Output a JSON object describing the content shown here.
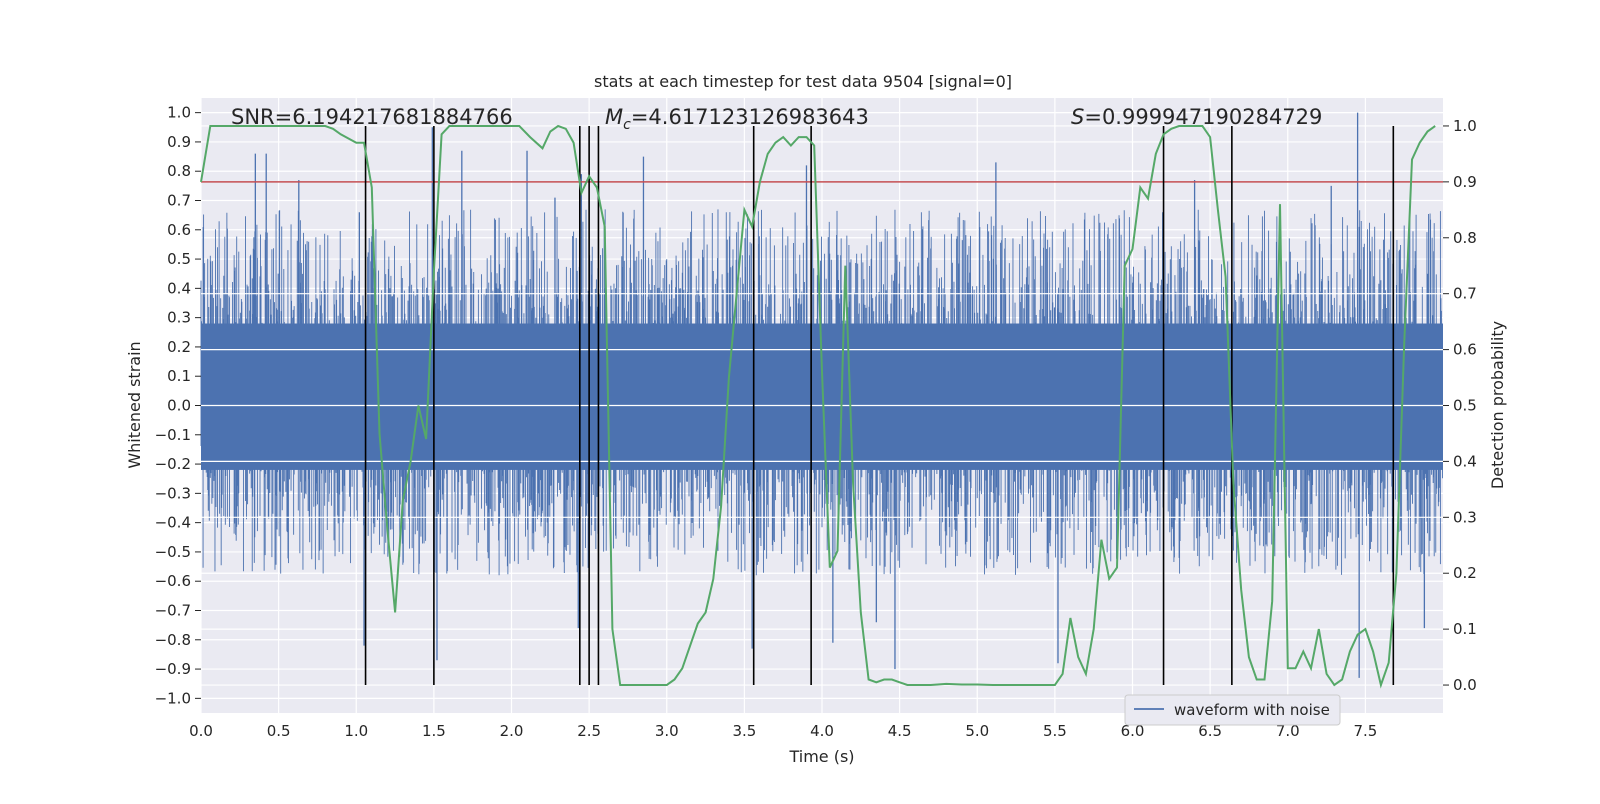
{
  "chart_data": {
    "type": "line",
    "title": "stats at each timestep for test data 9504 [signal=0]",
    "xlabel": "Time (s)",
    "ylabel": "Whitened strain",
    "y2label": "Detection probability",
    "xlim": [
      0.0,
      8.0
    ],
    "ylim": [
      -1.05,
      1.05
    ],
    "y2lim": [
      -0.05,
      1.05
    ],
    "xticks": [
      "0.0",
      "0.5",
      "1.0",
      "1.5",
      "2.0",
      "2.5",
      "3.0",
      "3.5",
      "4.0",
      "4.5",
      "5.0",
      "5.5",
      "6.0",
      "6.5",
      "7.0",
      "7.5"
    ],
    "yticks": [
      "-1.0",
      "-0.9",
      "-0.8",
      "-0.7",
      "-0.6",
      "-0.5",
      "-0.4",
      "-0.3",
      "-0.2",
      "-0.1",
      "0.0",
      "0.1",
      "0.2",
      "0.3",
      "0.4",
      "0.5",
      "0.6",
      "0.7",
      "0.8",
      "0.9",
      "1.0"
    ],
    "y2ticks": [
      "0.0",
      "0.1",
      "0.2",
      "0.3",
      "0.4",
      "0.5",
      "0.6",
      "0.7",
      "0.8",
      "0.9",
      "1.0"
    ],
    "grid": true,
    "legend": {
      "placement": "lower-right",
      "entries": [
        "waveform with noise"
      ]
    },
    "annotations": {
      "snr": "SNR=6.194217681884766",
      "mc_symbol": "M",
      "mc_sub": "c",
      "mc_value": "=4.617123126983643",
      "s_symbol": "S",
      "s_value": "=0.999947190284729"
    },
    "threshold": {
      "value": 0.9,
      "axis": "right",
      "color": "#c44e52"
    },
    "vlines": [
      1.06,
      1.5,
      2.44,
      2.5,
      2.56,
      3.56,
      3.93,
      6.2,
      6.64,
      7.68
    ],
    "vline_range": [
      0.0,
      1.0
    ],
    "colors": {
      "waveform": "#4c72b0",
      "probability": "#55a868",
      "vline": "#000000",
      "bg": "#eaeaf2"
    },
    "series": [
      {
        "name": "waveform with noise",
        "axis": "left",
        "note": "dense noise, roughly within -0.5..0.6 with peaks to about +/-0.9",
        "peaks": [
          [
            0.35,
            0.86
          ],
          [
            0.42,
            0.86
          ],
          [
            0.63,
            0.77
          ],
          [
            1.02,
            0.66
          ],
          [
            1.05,
            -0.82
          ],
          [
            1.49,
            0.95
          ],
          [
            1.52,
            -0.87
          ],
          [
            1.68,
            0.87
          ],
          [
            2.1,
            0.87
          ],
          [
            2.28,
            0.71
          ],
          [
            2.43,
            -0.76
          ],
          [
            2.45,
            0.79
          ],
          [
            2.85,
            0.85
          ],
          [
            3.55,
            -0.83
          ],
          [
            3.9,
            0.82
          ],
          [
            4.07,
            -0.81
          ],
          [
            4.35,
            -0.74
          ],
          [
            4.47,
            -0.9
          ],
          [
            5.12,
            0.83
          ],
          [
            5.52,
            -0.88
          ],
          [
            6.4,
            0.77
          ],
          [
            7.28,
            0.75
          ],
          [
            7.45,
            1.0
          ],
          [
            7.46,
            -0.93
          ],
          [
            7.88,
            -0.76
          ]
        ]
      },
      {
        "name": "",
        "axis": "right",
        "x": [
          0.0,
          0.06,
          0.1,
          0.2,
          0.3,
          0.4,
          0.5,
          0.6,
          0.7,
          0.8,
          0.85,
          0.9,
          1.0,
          1.05,
          1.1,
          1.15,
          1.2,
          1.25,
          1.3,
          1.35,
          1.4,
          1.45,
          1.5,
          1.55,
          1.6,
          1.7,
          1.8,
          1.9,
          2.0,
          2.05,
          2.12,
          2.2,
          2.25,
          2.3,
          2.35,
          2.4,
          2.45,
          2.5,
          2.55,
          2.6,
          2.65,
          2.7,
          2.75,
          2.8,
          2.85,
          2.9,
          3.0,
          3.05,
          3.1,
          3.2,
          3.25,
          3.3,
          3.35,
          3.4,
          3.45,
          3.5,
          3.55,
          3.6,
          3.65,
          3.7,
          3.75,
          3.8,
          3.85,
          3.9,
          3.95,
          4.0,
          4.05,
          4.1,
          4.15,
          4.2,
          4.25,
          4.3,
          4.35,
          4.4,
          4.45,
          4.5,
          4.55,
          4.6,
          4.7,
          4.8,
          4.9,
          5.0,
          5.1,
          5.2,
          5.3,
          5.4,
          5.5,
          5.55,
          5.6,
          5.65,
          5.7,
          5.75,
          5.8,
          5.85,
          5.9,
          5.95,
          6.0,
          6.05,
          6.1,
          6.15,
          6.2,
          6.25,
          6.3,
          6.35,
          6.4,
          6.45,
          6.5,
          6.55,
          6.6,
          6.65,
          6.7,
          6.75,
          6.8,
          6.85,
          6.9,
          6.95,
          7.0,
          7.05,
          7.1,
          7.15,
          7.2,
          7.25,
          7.3,
          7.35,
          7.4,
          7.45,
          7.5,
          7.55,
          7.6,
          7.65,
          7.7,
          7.75,
          7.8,
          7.85,
          7.9,
          7.95
        ],
        "values": [
          0.9,
          1.0,
          1.0,
          1.0,
          1.0,
          1.0,
          1.0,
          1.0,
          1.0,
          1.0,
          0.995,
          0.985,
          0.97,
          0.97,
          0.89,
          0.45,
          0.28,
          0.13,
          0.33,
          0.4,
          0.5,
          0.44,
          0.74,
          0.985,
          1.0,
          1.0,
          1.0,
          1.0,
          1.0,
          1.0,
          0.98,
          0.96,
          0.99,
          1.0,
          0.995,
          0.97,
          0.88,
          0.91,
          0.89,
          0.82,
          0.1,
          0.0,
          0.0,
          0.0,
          0.0,
          0.0,
          0.0,
          0.01,
          0.03,
          0.11,
          0.13,
          0.19,
          0.32,
          0.55,
          0.7,
          0.85,
          0.82,
          0.9,
          0.95,
          0.97,
          0.98,
          0.965,
          0.98,
          0.98,
          0.965,
          0.56,
          0.21,
          0.24,
          0.75,
          0.36,
          0.13,
          0.01,
          0.005,
          0.01,
          0.01,
          0.005,
          0.0,
          0.0,
          0.0,
          0.002,
          0.001,
          0.001,
          0.0,
          0.0,
          0.0,
          0.0,
          0.0,
          0.02,
          0.12,
          0.05,
          0.02,
          0.1,
          0.26,
          0.19,
          0.21,
          0.75,
          0.78,
          0.89,
          0.87,
          0.95,
          0.985,
          0.995,
          1.0,
          1.0,
          1.0,
          1.0,
          0.98,
          0.85,
          0.73,
          0.36,
          0.17,
          0.05,
          0.01,
          0.01,
          0.15,
          0.86,
          0.03,
          0.03,
          0.06,
          0.03,
          0.1,
          0.02,
          0.0,
          0.01,
          0.06,
          0.09,
          0.1,
          0.06,
          0.0,
          0.04,
          0.2,
          0.61,
          0.94,
          0.97,
          0.99,
          1.0
        ]
      }
    ]
  }
}
